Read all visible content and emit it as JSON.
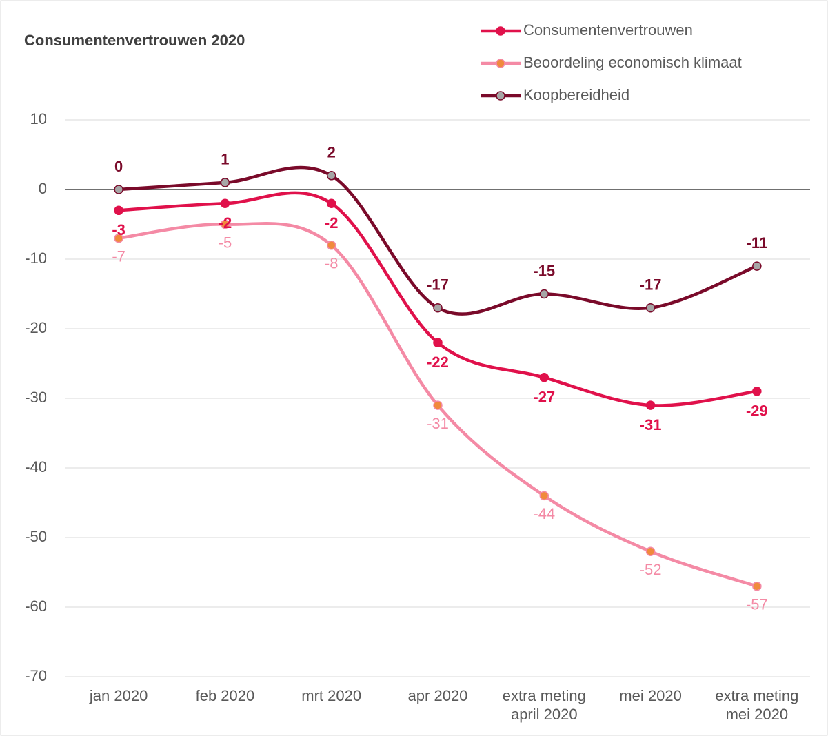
{
  "chart_data": {
    "type": "line",
    "title": "Consumentenvertrouwen 2020",
    "categories": [
      "jan 2020",
      "feb 2020",
      "mrt 2020",
      "apr 2020",
      "extra meting april 2020",
      "mei 2020",
      "extra meting mei 2020"
    ],
    "series": [
      {
        "name": "Consumentenvertrouwen",
        "color": "#e0114b",
        "marker_color": "#e0114b",
        "values": [
          -3,
          -2,
          -2,
          -22,
          -27,
          -31,
          -29
        ]
      },
      {
        "name": "Beoordeling economisch klimaat",
        "color": "#f48aa5",
        "marker_color": "#f08a3c",
        "values": [
          -7,
          -5,
          -8,
          -31,
          -44,
          -52,
          -57
        ]
      },
      {
        "name": "Koopbereidheid",
        "color": "#7a0a2a",
        "marker_color": "#a6a6a6",
        "values": [
          0,
          1,
          2,
          -17,
          -15,
          -17,
          -11
        ]
      }
    ],
    "ylim": [
      -70,
      10
    ],
    "yticks": [
      -70,
      -60,
      -50,
      -40,
      -30,
      -20,
      -10,
      0,
      10
    ],
    "grid": true,
    "legend": "top-right"
  }
}
